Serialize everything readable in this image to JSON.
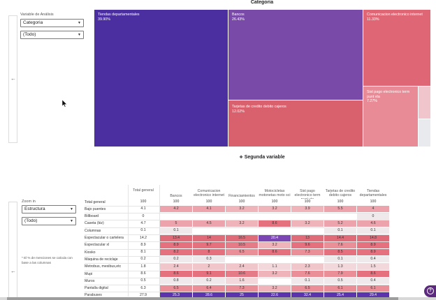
{
  "top": {
    "filter_label": "Variable de Análisis",
    "select1": "Categoria",
    "select2": "(Todo)",
    "chart_title": "Categoria"
  },
  "treemap": {
    "tiles": [
      {
        "name": "Tiendas departamentales",
        "pct": "39.90%",
        "color": "#4b2ea0"
      },
      {
        "name": "Bancos",
        "pct": "26.43%",
        "color": "#7a4aa8"
      },
      {
        "name": "Comunicacion electronico internet",
        "pct": "11.33%",
        "color": "#df6674"
      },
      {
        "name": "Tarjetas de credito debito cajeros",
        "pct": "12.02%",
        "color": "#d9606d"
      },
      {
        "name": "Sist pago electronico term punt vta",
        "pct": "7.27%",
        "color": "#e88b96"
      }
    ],
    "small_tiles": [
      "#f0c6cc",
      "#f5dadd",
      "#e9eaee"
    ]
  },
  "bottom": {
    "title": "Segunda variable",
    "zoom_label": "Zoom in",
    "select1": "Estructura",
    "select2": "(Todo)",
    "note": "* El % de menciones se calcula con base a las columnas",
    "total_header": "Total general",
    "columns": [
      "Bancos",
      "Comunicacion electronico internet",
      "Financiamientos",
      "Motocicletas motonetas moto sci",
      "Sist pago electronico term punt vta",
      "Tarjetas de credito debito cajeros",
      "Tiendas departamentales"
    ],
    "rows": [
      {
        "label": "Total general",
        "total": "100",
        "vals": [
          "100",
          "100",
          "100",
          "100",
          "100",
          "100",
          "100"
        ]
      },
      {
        "label": "Bajo puentes",
        "total": "4.1",
        "vals": [
          "4.2",
          "4.1",
          "3.2",
          "3.2",
          "3.9",
          "5.5",
          "4"
        ]
      },
      {
        "label": "Billboard",
        "total": "0",
        "vals": [
          "",
          "",
          "",
          "",
          "",
          "",
          "0"
        ]
      },
      {
        "label": "Caseta (kiz)",
        "total": "4.7",
        "vals": [
          "5",
          "4.5",
          "3.2",
          "8.6",
          "3.2",
          "5.2",
          "4.6"
        ]
      },
      {
        "label": "Columnas",
        "total": "0.1",
        "vals": [
          "0.1",
          "",
          "",
          "",
          "",
          "0.1",
          "0.1"
        ]
      },
      {
        "label": "Espectacular o cartelera",
        "total": "14.2",
        "vals": [
          "13.4",
          "14",
          "16.5",
          "20.4",
          "13",
          "14.4",
          "14.8"
        ]
      },
      {
        "label": "Espectacular xl",
        "total": "8.9",
        "vals": [
          "8.9",
          "9.7",
          "10.5",
          "3.2",
          "9.6",
          "7.6",
          "8.9"
        ]
      },
      {
        "label": "Kiosko",
        "total": "8.1",
        "vals": [
          "8.2",
          "8",
          "6.5",
          "8.6",
          "7.3",
          "8.5",
          "8.9"
        ]
      },
      {
        "label": "Máquina de reciclaje",
        "total": "0.2",
        "vals": [
          "0.2",
          "0.3",
          "",
          "",
          "",
          "0.1",
          "0.4"
        ]
      },
      {
        "label": "Metrobus, mexibus,etc",
        "total": "1.8",
        "vals": [
          "2.4",
          "2",
          "2.4",
          "1.1",
          "2.3",
          "1.3",
          "1.5"
        ]
      },
      {
        "label": "Mupi",
        "total": "8.6",
        "vals": [
          "8.6",
          "9.1",
          "10.6",
          "3.2",
          "7.6",
          "7.9",
          "8.6"
        ]
      },
      {
        "label": "Muros",
        "total": "0.5",
        "vals": [
          "0.8",
          "0.2",
          "1.6",
          "",
          "0.1",
          "0.5",
          "0.4"
        ]
      },
      {
        "label": "Pantalla digital",
        "total": "6.3",
        "vals": [
          "6.5",
          "6.4",
          "7.3",
          "3.2",
          "6.5",
          "6.1",
          "6.1"
        ]
      },
      {
        "label": "Parabuses",
        "total": "27.9",
        "vals": [
          "25.3",
          "28.6",
          "25",
          "22.6",
          "32.4",
          "25.4",
          "29.4"
        ]
      }
    ]
  },
  "colors": {
    "heat_low": "#f1e6ea",
    "heat_mid": "#e9848f",
    "heat_high": "#d9495a",
    "heat_purple": "#7b45b3",
    "help_button": "#5b2a7e"
  }
}
